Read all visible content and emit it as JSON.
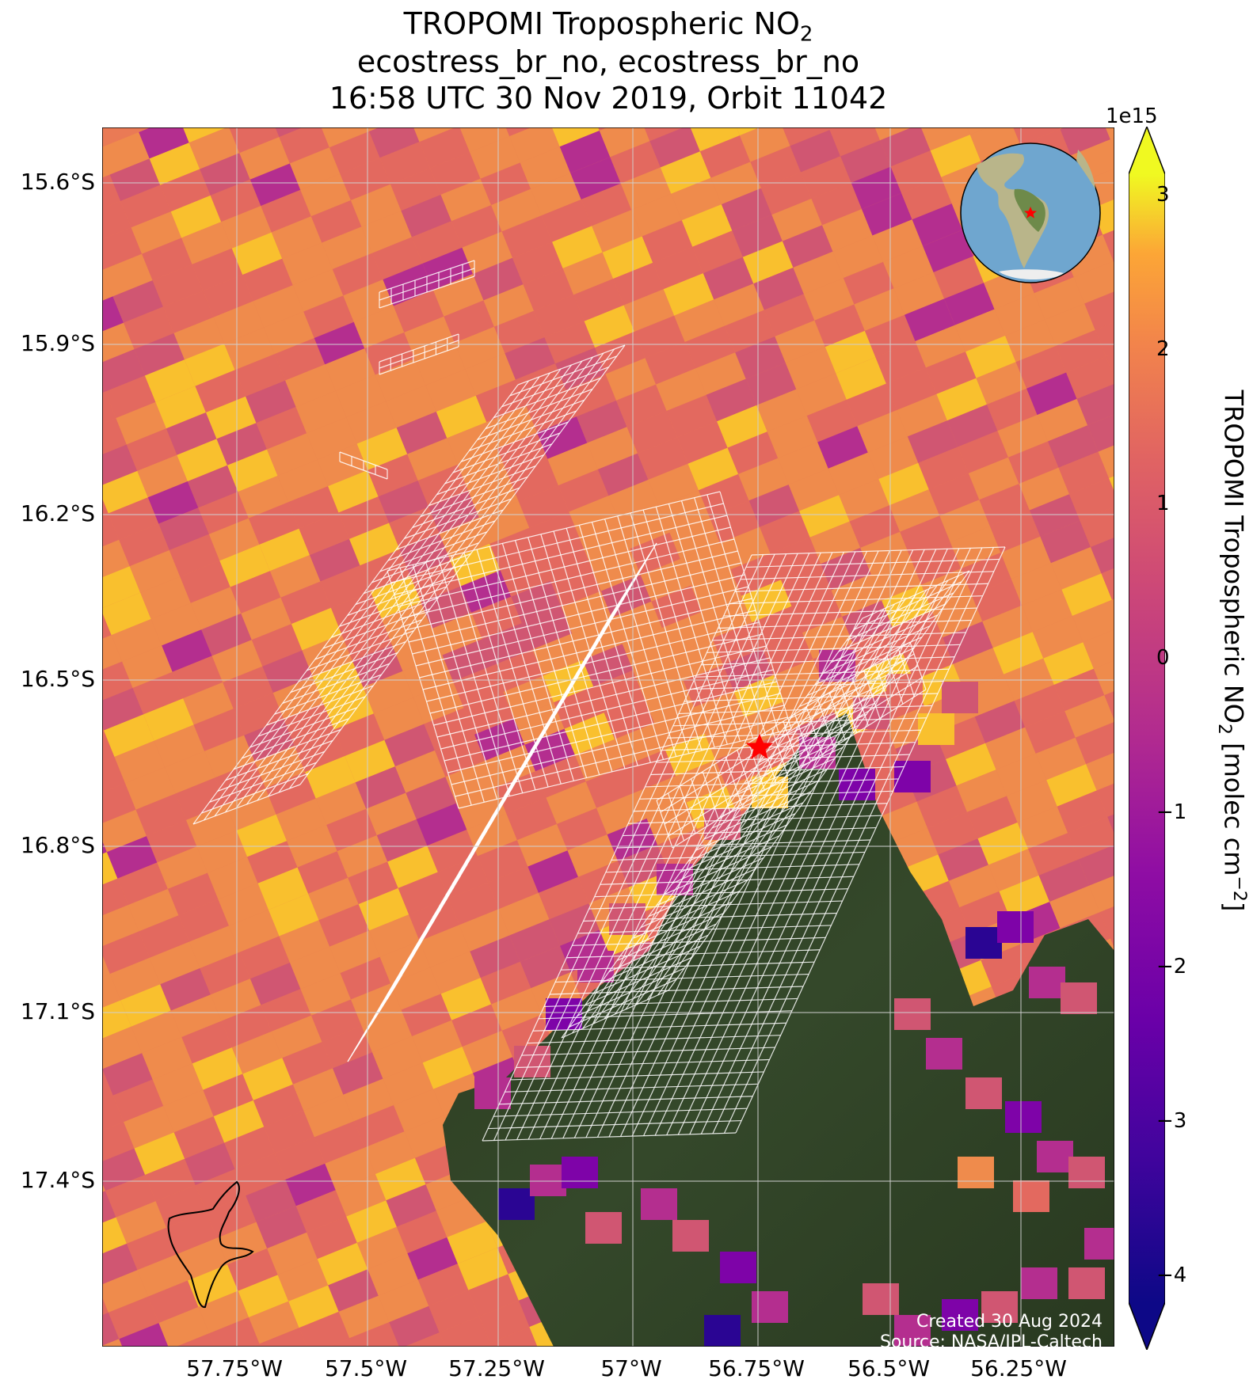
{
  "title": {
    "line1_main": "TROPOMI Tropospheric NO",
    "line1_sub": "2",
    "line2": "ecostress_br_no, ecostress_br_no",
    "line3": "16:58 UTC 30 Nov 2019, Orbit 11042"
  },
  "map": {
    "lat_ticks": [
      "15.6°S",
      "15.9°S",
      "16.2°S",
      "16.5°S",
      "16.8°S",
      "17.1°S",
      "17.4°S"
    ],
    "lon_ticks": [
      "57.75°W",
      "57.5°W",
      "57.25°W",
      "57°W",
      "56.75°W",
      "56.5°W",
      "56.25°W"
    ],
    "lat_range": [
      "15.5°S",
      "17.68°S"
    ],
    "lon_range": [
      "58.0°W",
      "56.1°W"
    ],
    "gridlines": true,
    "site_marker": {
      "symbol": "red-star",
      "lat": -16.61,
      "lon": -56.77,
      "color": "#ff0000"
    },
    "inset_globe": {
      "region": "South America",
      "marker": "red-star"
    },
    "no_data_background": "satellite imagery (dark green forest)"
  },
  "colorbar": {
    "colormap": "plasma",
    "exponent_label": "1e15",
    "ticks": [
      "3",
      "2",
      "1",
      "0",
      "−1",
      "−2",
      "−3",
      "−4"
    ],
    "range": [
      -4.3,
      3.4
    ],
    "extend": "both",
    "label_main": "TROPOMI Tropospheric NO",
    "label_sub": "2",
    "label_unit": " [molec cm",
    "label_sup": "−2",
    "label_end": "]"
  },
  "credits": {
    "line1": "Created 30 Aug 2024",
    "line2": "Source: NASA/JPL-Caltech"
  },
  "colors": {
    "orange": "#ef8b4c",
    "salmon": "#e3695f",
    "pink": "#d05672",
    "yellow": "#f9c02e",
    "bright_yellow": "#f0f921",
    "magenta": "#b42e8f",
    "purple": "#7e03a8",
    "dark_blue": "#2a0593",
    "forest": "#2f3f22"
  }
}
